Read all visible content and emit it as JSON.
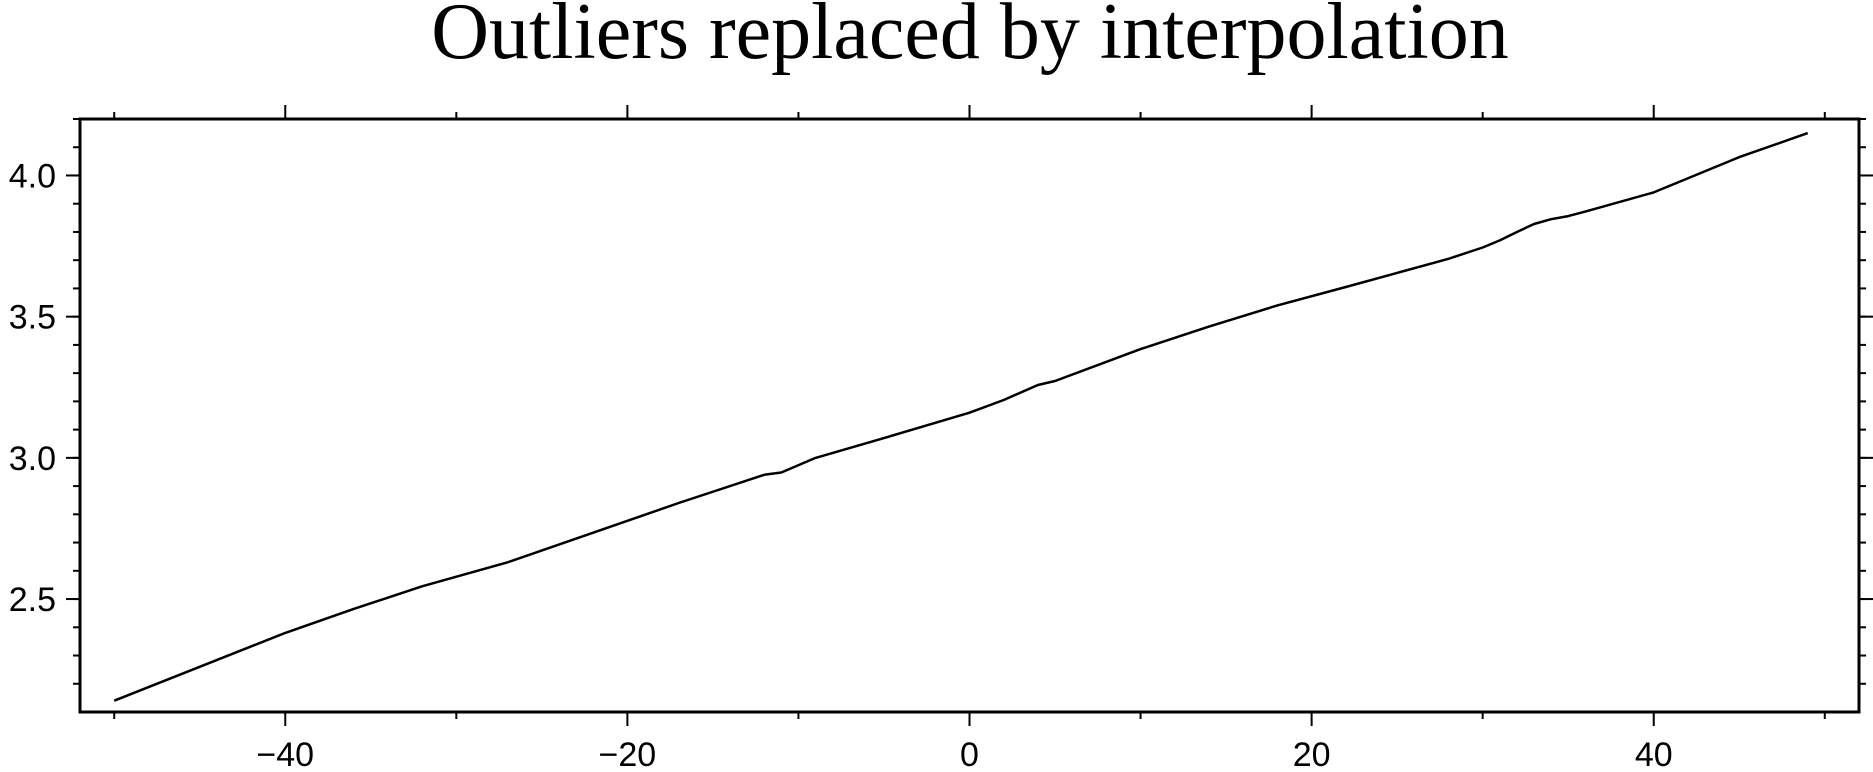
{
  "chart_data": {
    "type": "line",
    "title": "Outliers replaced by interpolation",
    "xlabel": "",
    "ylabel": "",
    "xlim": [
      -52,
      52
    ],
    "ylim": [
      2.1,
      4.2
    ],
    "x_ticks": {
      "labeled": [
        -40,
        -20,
        0,
        20,
        40
      ],
      "labels": [
        "−40",
        "−20",
        "0",
        "20",
        "40"
      ],
      "major_unlabeled": [
        -50,
        -30,
        -10,
        10,
        30,
        50
      ]
    },
    "y_ticks": {
      "labeled": [
        2.5,
        3.0,
        3.5,
        4.0
      ],
      "labels": [
        "2.5",
        "3.0",
        "3.5",
        "4.0"
      ],
      "minor_step": 0.1
    },
    "grid": false,
    "line_color": "#000000",
    "series": [
      {
        "x": [
          -50,
          -45,
          -40,
          -36,
          -32,
          -27,
          -22,
          -17,
          -12,
          -11,
          -9,
          -5,
          0,
          2,
          4,
          5,
          10,
          14,
          18,
          22,
          25,
          28,
          30,
          31,
          32,
          33,
          34,
          35,
          36,
          40,
          45,
          49
        ],
        "values": [
          2.14,
          2.26,
          2.38,
          2.465,
          2.545,
          2.63,
          2.735,
          2.84,
          2.94,
          2.948,
          3.0,
          3.07,
          3.16,
          3.205,
          3.258,
          3.272,
          3.385,
          3.465,
          3.54,
          3.605,
          3.655,
          3.705,
          3.745,
          3.77,
          3.8,
          3.828,
          3.845,
          3.856,
          3.872,
          3.94,
          4.065,
          4.15
        ]
      }
    ]
  }
}
